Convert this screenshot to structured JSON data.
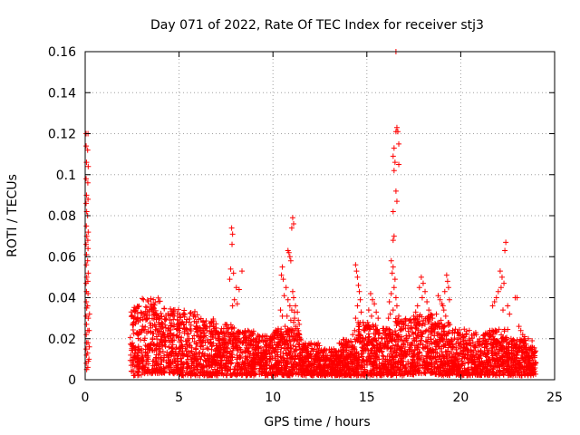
{
  "chart_data": {
    "type": "scatter",
    "title": "Day 071 of 2022, Rate Of TEC Index for receiver stj3",
    "xlabel": "GPS time / hours",
    "ylabel": "ROTI / TECUs",
    "xlim": [
      0,
      25
    ],
    "ylim": [
      0,
      0.16
    ],
    "xticks": [
      0,
      5,
      10,
      15,
      20,
      25
    ],
    "xtick_labels": [
      "0",
      "5",
      "10",
      "15",
      "20",
      "25"
    ],
    "yticks": [
      0,
      0.02,
      0.04,
      0.06,
      0.08,
      0.1,
      0.12,
      0.14,
      0.16
    ],
    "ytick_labels": [
      "0",
      "0.02",
      "0.04",
      "0.06",
      "0.08",
      "0.1",
      "0.12",
      "0.14",
      "0.16"
    ],
    "grid": true,
    "marker": "+",
    "color": "#ff0000",
    "series": [
      {
        "name": "ROTI",
        "points": [
          [
            0.05,
            0.12
          ],
          [
            0.05,
            0.114
          ],
          [
            0.07,
            0.106
          ],
          [
            0.05,
            0.098
          ],
          [
            0.07,
            0.09
          ],
          [
            0.05,
            0.086
          ],
          [
            0.08,
            0.082
          ],
          [
            0.06,
            0.075
          ],
          [
            0.08,
            0.07
          ],
          [
            0.05,
            0.066
          ],
          [
            0.07,
            0.061
          ],
          [
            0.06,
            0.056
          ],
          [
            0.08,
            0.05
          ],
          [
            0.05,
            0.047
          ],
          [
            0.07,
            0.043
          ],
          [
            0.06,
            0.038
          ],
          [
            0.08,
            0.035
          ],
          [
            0.05,
            0.031
          ],
          [
            0.07,
            0.027
          ],
          [
            0.06,
            0.022
          ],
          [
            0.08,
            0.018
          ],
          [
            0.05,
            0.015
          ],
          [
            0.07,
            0.012
          ],
          [
            0.06,
            0.008
          ],
          [
            0.08,
            0.005
          ],
          [
            0.15,
            0.12
          ],
          [
            0.13,
            0.112
          ],
          [
            0.16,
            0.104
          ],
          [
            0.14,
            0.096
          ],
          [
            0.15,
            0.088
          ],
          [
            0.13,
            0.08
          ],
          [
            0.16,
            0.072
          ],
          [
            0.14,
            0.068
          ],
          [
            0.15,
            0.064
          ],
          [
            0.13,
            0.058
          ],
          [
            0.16,
            0.052
          ],
          [
            0.14,
            0.048
          ],
          [
            0.15,
            0.042
          ],
          [
            0.13,
            0.036
          ],
          [
            0.16,
            0.03
          ],
          [
            0.14,
            0.024
          ],
          [
            0.15,
            0.018
          ],
          [
            0.13,
            0.013
          ],
          [
            0.16,
            0.009
          ],
          [
            0.14,
            0.006
          ],
          [
            0.2,
            0.01
          ],
          [
            0.22,
            0.016
          ],
          [
            0.21,
            0.024
          ],
          [
            0.23,
            0.032
          ],
          [
            7.8,
            0.074
          ],
          [
            7.85,
            0.071
          ],
          [
            7.82,
            0.066
          ],
          [
            7.75,
            0.054
          ],
          [
            7.9,
            0.052
          ],
          [
            7.7,
            0.049
          ],
          [
            8.05,
            0.045
          ],
          [
            8.2,
            0.044
          ],
          [
            8.35,
            0.053
          ],
          [
            8.1,
            0.037
          ],
          [
            7.95,
            0.039
          ],
          [
            7.85,
            0.036
          ],
          [
            10.5,
            0.055
          ],
          [
            10.45,
            0.051
          ],
          [
            10.55,
            0.049
          ],
          [
            10.7,
            0.045
          ],
          [
            10.6,
            0.041
          ],
          [
            10.8,
            0.039
          ],
          [
            10.9,
            0.036
          ],
          [
            11.0,
            0.034
          ],
          [
            10.75,
            0.031
          ],
          [
            10.95,
            0.029
          ],
          [
            11.1,
            0.028
          ],
          [
            11.2,
            0.026
          ],
          [
            10.65,
            0.026
          ],
          [
            10.8,
            0.063
          ],
          [
            10.85,
            0.062
          ],
          [
            10.9,
            0.06
          ],
          [
            10.95,
            0.058
          ],
          [
            11.05,
            0.043
          ],
          [
            11.1,
            0.04
          ],
          [
            11.15,
            0.033
          ],
          [
            10.4,
            0.034
          ],
          [
            10.5,
            0.031
          ],
          [
            11.05,
            0.079
          ],
          [
            11.1,
            0.076
          ],
          [
            11.0,
            0.074
          ],
          [
            11.2,
            0.036
          ],
          [
            11.3,
            0.033
          ],
          [
            11.15,
            0.03
          ],
          [
            11.35,
            0.029
          ],
          [
            11.4,
            0.027
          ],
          [
            14.4,
            0.056
          ],
          [
            14.45,
            0.053
          ],
          [
            14.5,
            0.05
          ],
          [
            14.55,
            0.046
          ],
          [
            14.6,
            0.043
          ],
          [
            14.65,
            0.039
          ],
          [
            14.5,
            0.036
          ],
          [
            14.7,
            0.033
          ],
          [
            14.4,
            0.03
          ],
          [
            14.8,
            0.028
          ],
          [
            14.55,
            0.026
          ],
          [
            14.35,
            0.024
          ],
          [
            14.9,
            0.024
          ],
          [
            14.25,
            0.022
          ],
          [
            15.2,
            0.042
          ],
          [
            15.3,
            0.039
          ],
          [
            15.4,
            0.037
          ],
          [
            15.5,
            0.033
          ],
          [
            15.1,
            0.034
          ],
          [
            15.6,
            0.03
          ],
          [
            15.25,
            0.031
          ],
          [
            16.55,
            0.16
          ],
          [
            16.6,
            0.123
          ],
          [
            16.55,
            0.121
          ],
          [
            16.45,
            0.113
          ],
          [
            16.4,
            0.109
          ],
          [
            16.5,
            0.106
          ],
          [
            16.7,
            0.105
          ],
          [
            16.45,
            0.102
          ],
          [
            16.55,
            0.092
          ],
          [
            16.6,
            0.087
          ],
          [
            16.4,
            0.082
          ],
          [
            16.45,
            0.07
          ],
          [
            16.4,
            0.068
          ],
          [
            16.7,
            0.115
          ],
          [
            16.65,
            0.121
          ],
          [
            16.3,
            0.058
          ],
          [
            16.4,
            0.055
          ],
          [
            16.35,
            0.052
          ],
          [
            16.5,
            0.049
          ],
          [
            16.45,
            0.045
          ],
          [
            16.3,
            0.042
          ],
          [
            16.55,
            0.04
          ],
          [
            16.2,
            0.038
          ],
          [
            16.6,
            0.036
          ],
          [
            16.4,
            0.034
          ],
          [
            16.25,
            0.032
          ],
          [
            16.7,
            0.031
          ],
          [
            16.15,
            0.03
          ],
          [
            17.9,
            0.05
          ],
          [
            18.0,
            0.047
          ],
          [
            17.8,
            0.045
          ],
          [
            18.1,
            0.043
          ],
          [
            17.95,
            0.04
          ],
          [
            18.2,
            0.038
          ],
          [
            17.7,
            0.036
          ],
          [
            18.3,
            0.034
          ],
          [
            17.6,
            0.033
          ],
          [
            18.4,
            0.032
          ],
          [
            17.5,
            0.031
          ],
          [
            18.5,
            0.03
          ],
          [
            18.8,
            0.041
          ],
          [
            18.9,
            0.039
          ],
          [
            19.0,
            0.037
          ],
          [
            19.1,
            0.034
          ],
          [
            18.7,
            0.032
          ],
          [
            19.2,
            0.031
          ],
          [
            18.95,
            0.029
          ],
          [
            19.25,
            0.051
          ],
          [
            19.3,
            0.048
          ],
          [
            19.35,
            0.045
          ],
          [
            19.15,
            0.043
          ],
          [
            19.4,
            0.039
          ],
          [
            19.05,
            0.036
          ],
          [
            22.1,
            0.053
          ],
          [
            22.2,
            0.05
          ],
          [
            22.3,
            0.047
          ],
          [
            22.4,
            0.067
          ],
          [
            22.35,
            0.063
          ],
          [
            22.15,
            0.045
          ],
          [
            22.0,
            0.043
          ],
          [
            21.9,
            0.04
          ],
          [
            21.8,
            0.038
          ],
          [
            21.7,
            0.036
          ],
          [
            22.5,
            0.036
          ],
          [
            22.25,
            0.034
          ],
          [
            22.6,
            0.032
          ],
          [
            22.9,
            0.04
          ],
          [
            23.0,
            0.04
          ],
          [
            23.1,
            0.026
          ],
          [
            23.2,
            0.024
          ],
          [
            23.3,
            0.022
          ],
          [
            23.4,
            0.021
          ],
          [
            23.6,
            0.02
          ],
          [
            23.8,
            0.019
          ]
        ]
      }
    ],
    "dense_band": {
      "description": "Dense continuous cloud of points from 2.4 to 24 hours, roughly 0.002 to 0.035 TECU",
      "x_start": 2.4,
      "x_end": 24.0,
      "segments": [
        {
          "x": [
            2.4,
            3.0
          ],
          "lo": 0.002,
          "hi": 0.036
        },
        {
          "x": [
            3.0,
            4.0
          ],
          "lo": 0.003,
          "hi": 0.04
        },
        {
          "x": [
            4.0,
            5.0
          ],
          "lo": 0.003,
          "hi": 0.036
        },
        {
          "x": [
            5.0,
            6.0
          ],
          "lo": 0.002,
          "hi": 0.034
        },
        {
          "x": [
            6.0,
            7.0
          ],
          "lo": 0.002,
          "hi": 0.03
        },
        {
          "x": [
            7.0,
            8.0
          ],
          "lo": 0.002,
          "hi": 0.027
        },
        {
          "x": [
            8.0,
            9.0
          ],
          "lo": 0.002,
          "hi": 0.024
        },
        {
          "x": [
            9.0,
            10.0
          ],
          "lo": 0.002,
          "hi": 0.022
        },
        {
          "x": [
            10.0,
            11.5
          ],
          "lo": 0.002,
          "hi": 0.025
        },
        {
          "x": [
            11.5,
            12.5
          ],
          "lo": 0.002,
          "hi": 0.018
        },
        {
          "x": [
            12.5,
            13.5
          ],
          "lo": 0.002,
          "hi": 0.015
        },
        {
          "x": [
            13.5,
            14.5
          ],
          "lo": 0.002,
          "hi": 0.02
        },
        {
          "x": [
            14.5,
            15.5
          ],
          "lo": 0.002,
          "hi": 0.028
        },
        {
          "x": [
            15.5,
            16.5
          ],
          "lo": 0.002,
          "hi": 0.025
        },
        {
          "x": [
            16.5,
            17.5
          ],
          "lo": 0.002,
          "hi": 0.03
        },
        {
          "x": [
            17.5,
            18.5
          ],
          "lo": 0.003,
          "hi": 0.032
        },
        {
          "x": [
            18.5,
            19.5
          ],
          "lo": 0.002,
          "hi": 0.028
        },
        {
          "x": [
            19.5,
            20.5
          ],
          "lo": 0.002,
          "hi": 0.025
        },
        {
          "x": [
            20.5,
            21.5
          ],
          "lo": 0.002,
          "hi": 0.023
        },
        {
          "x": [
            21.5,
            22.5
          ],
          "lo": 0.002,
          "hi": 0.025
        },
        {
          "x": [
            22.5,
            23.5
          ],
          "lo": 0.002,
          "hi": 0.02
        },
        {
          "x": [
            23.5,
            24.0
          ],
          "lo": 0.002,
          "hi": 0.016
        }
      ]
    }
  }
}
